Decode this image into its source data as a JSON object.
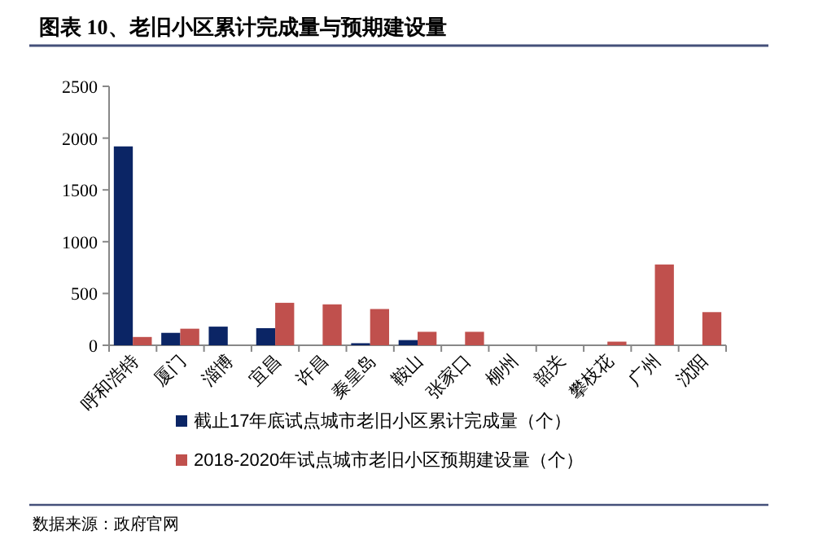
{
  "chart_data": {
    "type": "bar",
    "title": "图表 10、老旧小区累计完成量与预期建设量",
    "categories": [
      "呼和浩特",
      "厦门",
      "淄博",
      "宜昌",
      "许昌",
      "秦皇岛",
      "鞍山",
      "张家口",
      "柳州",
      "韶关",
      "攀枝花",
      "广州",
      "沈阳"
    ],
    "series": [
      {
        "name": "截止17年底试点城市老旧小区累计完成量（个）",
        "color": "#0b2565",
        "values": [
          1920,
          120,
          180,
          165,
          null,
          20,
          50,
          null,
          null,
          null,
          null,
          null,
          null
        ]
      },
      {
        "name": "2018-2020年试点城市老旧小区预期建设量（个）",
        "color": "#c0504d",
        "values": [
          80,
          160,
          null,
          410,
          395,
          350,
          130,
          130,
          null,
          null,
          35,
          780,
          320
        ]
      }
    ],
    "ylim": [
      0,
      2500
    ],
    "yticks": [
      0,
      500,
      1000,
      1500,
      2000,
      2500
    ],
    "grid": false,
    "legend": "bottom",
    "annotations": [
      "数据来源：政府官网"
    ]
  }
}
